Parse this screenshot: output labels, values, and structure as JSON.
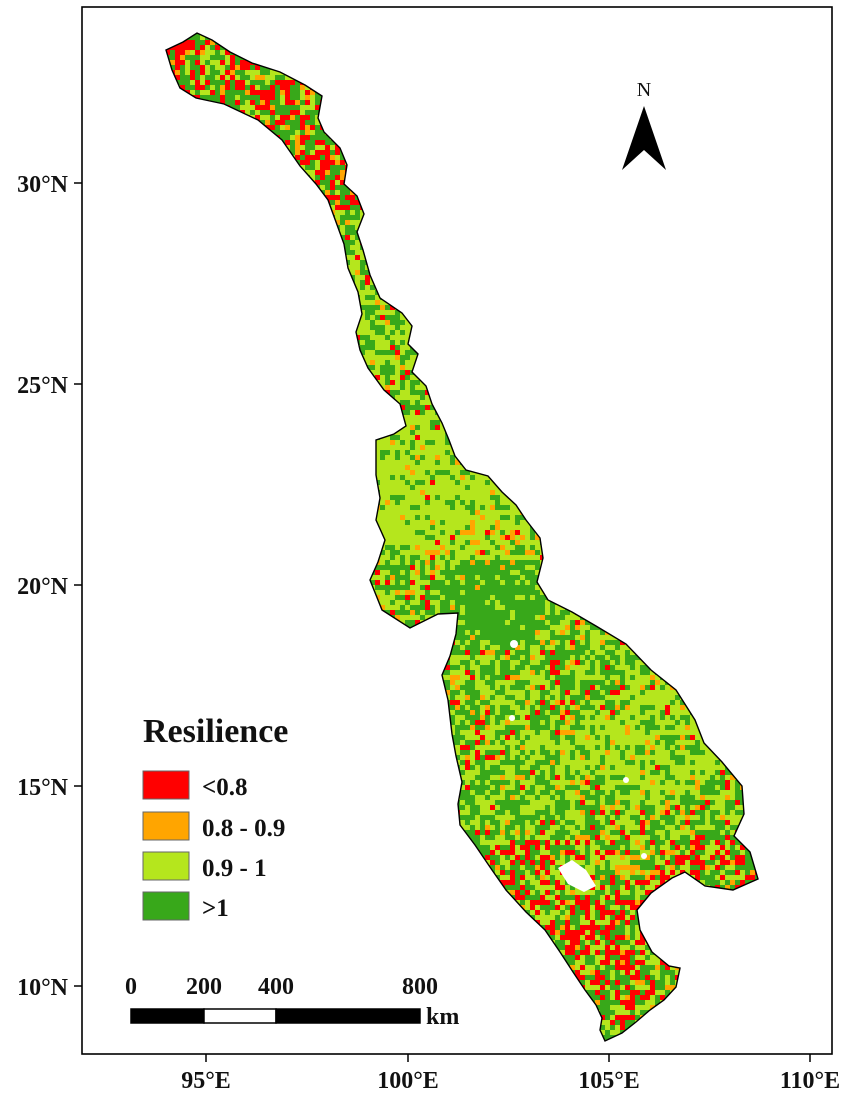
{
  "colors": {
    "lt08": "#ff0000",
    "c0809": "#ffa500",
    "c091": "#b5e61d",
    "gt1": "#38a81a",
    "frame": "#000000",
    "background": "#ffffff"
  },
  "axes": {
    "x_ticks": [
      "95°E",
      "100°E",
      "105°E",
      "110°E"
    ],
    "y_ticks": [
      "30°N",
      "25°N",
      "20°N",
      "15°N",
      "10°N"
    ]
  },
  "north_arrow": {
    "label": "N"
  },
  "legend": {
    "title": "Resilience",
    "items": [
      {
        "label": "<0.8",
        "color": "#ff0000"
      },
      {
        "label": "0.8 - 0.9",
        "color": "#ffa500"
      },
      {
        "label": "0.9 - 1",
        "color": "#b5e61d"
      },
      {
        "label": ">1",
        "color": "#38a81a"
      }
    ]
  },
  "scale_bar": {
    "labels": [
      "0",
      "200",
      "400",
      "800"
    ],
    "unit": "km"
  }
}
